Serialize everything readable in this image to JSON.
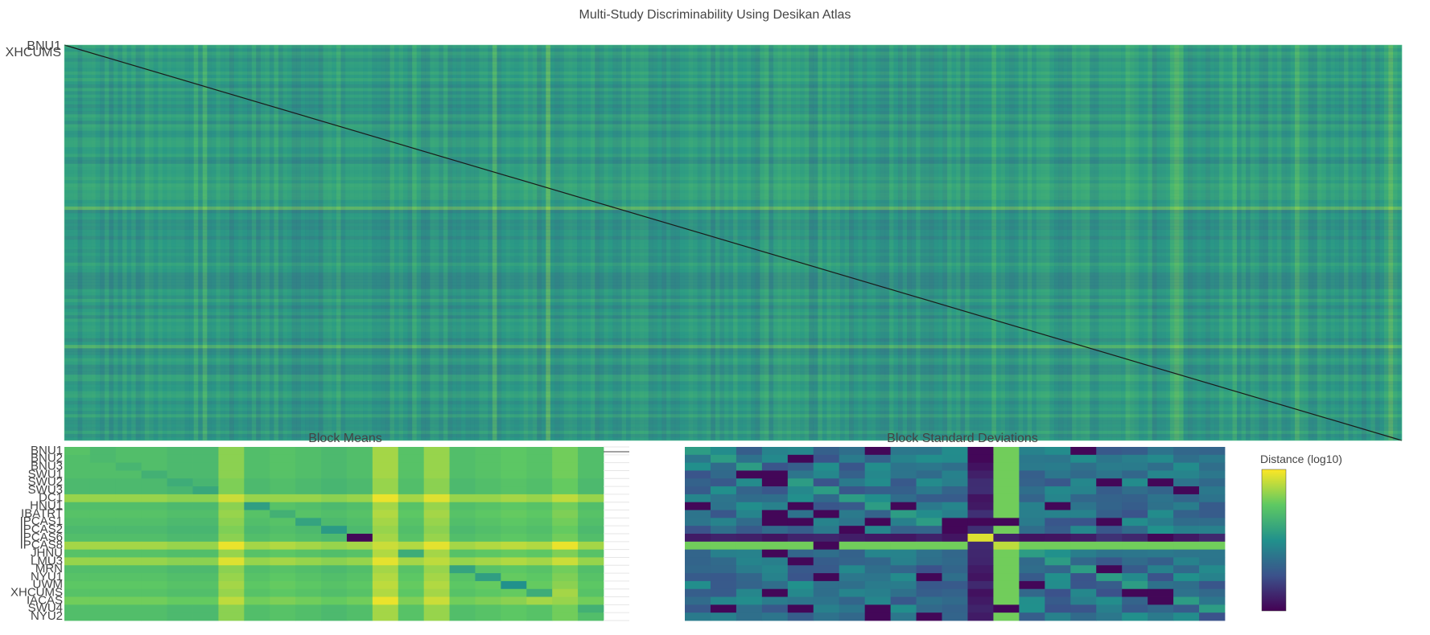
{
  "title": "Multi-Study Discriminability Using Desikan Atlas",
  "colors": {
    "scale": [
      "#440154",
      "#3b528b",
      "#21918c",
      "#5ec962",
      "#fde725"
    ],
    "diagonal": "#1a1a1a"
  },
  "chart_data": [
    {
      "type": "heatmap",
      "name": "distance-matrix",
      "title": "",
      "colorscale": "viridis",
      "diagonal": "minimum distance along main diagonal",
      "row_labels_visible": [
        "BNU1",
        "XHCUMS"
      ]
    },
    {
      "type": "heatmap",
      "name": "block-means",
      "title": "Block Means",
      "colorscale": "viridis",
      "row_labels": [
        "BNU1",
        "BNU2",
        "BNU3",
        "SWU1",
        "SWU2",
        "SWU3",
        "DC1",
        "HNU1",
        "IBATRT",
        "IPCAS1",
        "IPCAS2",
        "IPCAS6",
        "IPCAS8",
        "JHNU",
        "LMU3",
        "MRN",
        "NYU1",
        "UWM",
        "XHCUMS",
        "IACAS",
        "SWU4",
        "NYU2"
      ],
      "column_count": 21,
      "values_estimated": [
        [
          0.72,
          0.68,
          0.7,
          0.7,
          0.68,
          0.68,
          0.82,
          0.7,
          0.72,
          0.7,
          0.68,
          0.7,
          0.86,
          0.72,
          0.84,
          0.7,
          0.72,
          0.74,
          0.72,
          0.78,
          0.7
        ],
        [
          0.7,
          0.68,
          0.7,
          0.7,
          0.68,
          0.68,
          0.82,
          0.7,
          0.72,
          0.7,
          0.68,
          0.7,
          0.86,
          0.72,
          0.84,
          0.7,
          0.72,
          0.74,
          0.72,
          0.78,
          0.7
        ],
        [
          0.7,
          0.7,
          0.66,
          0.7,
          0.68,
          0.68,
          0.82,
          0.7,
          0.72,
          0.7,
          0.68,
          0.7,
          0.86,
          0.72,
          0.84,
          0.7,
          0.72,
          0.74,
          0.72,
          0.78,
          0.7
        ],
        [
          0.7,
          0.7,
          0.7,
          0.64,
          0.68,
          0.68,
          0.82,
          0.7,
          0.72,
          0.7,
          0.68,
          0.7,
          0.86,
          0.72,
          0.84,
          0.7,
          0.72,
          0.74,
          0.72,
          0.78,
          0.7
        ],
        [
          0.68,
          0.68,
          0.68,
          0.68,
          0.62,
          0.66,
          0.8,
          0.68,
          0.7,
          0.68,
          0.66,
          0.68,
          0.84,
          0.7,
          0.82,
          0.68,
          0.7,
          0.72,
          0.7,
          0.76,
          0.68
        ],
        [
          0.68,
          0.68,
          0.68,
          0.68,
          0.66,
          0.6,
          0.8,
          0.68,
          0.7,
          0.68,
          0.66,
          0.68,
          0.84,
          0.7,
          0.82,
          0.68,
          0.7,
          0.72,
          0.7,
          0.76,
          0.68
        ],
        [
          0.84,
          0.84,
          0.84,
          0.84,
          0.82,
          0.82,
          0.92,
          0.84,
          0.84,
          0.84,
          0.82,
          0.84,
          0.97,
          0.86,
          0.95,
          0.84,
          0.84,
          0.86,
          0.84,
          0.9,
          0.84
        ],
        [
          0.7,
          0.7,
          0.7,
          0.7,
          0.68,
          0.68,
          0.82,
          0.56,
          0.72,
          0.7,
          0.68,
          0.7,
          0.86,
          0.72,
          0.84,
          0.7,
          0.72,
          0.74,
          0.72,
          0.78,
          0.7
        ],
        [
          0.72,
          0.72,
          0.72,
          0.72,
          0.7,
          0.7,
          0.84,
          0.72,
          0.64,
          0.72,
          0.7,
          0.72,
          0.88,
          0.74,
          0.86,
          0.72,
          0.74,
          0.76,
          0.74,
          0.8,
          0.72
        ],
        [
          0.7,
          0.7,
          0.7,
          0.7,
          0.68,
          0.68,
          0.82,
          0.7,
          0.72,
          0.58,
          0.68,
          0.7,
          0.86,
          0.72,
          0.84,
          0.7,
          0.72,
          0.74,
          0.72,
          0.78,
          0.7
        ],
        [
          0.68,
          0.68,
          0.68,
          0.68,
          0.66,
          0.66,
          0.8,
          0.68,
          0.7,
          0.68,
          0.54,
          0.68,
          0.84,
          0.7,
          0.82,
          0.68,
          0.7,
          0.72,
          0.7,
          0.76,
          0.68
        ],
        [
          0.7,
          0.7,
          0.7,
          0.7,
          0.68,
          0.68,
          0.82,
          0.7,
          0.72,
          0.7,
          0.68,
          0.02,
          0.86,
          0.72,
          0.84,
          0.7,
          0.72,
          0.74,
          0.72,
          0.78,
          0.7
        ],
        [
          0.86,
          0.86,
          0.86,
          0.86,
          0.84,
          0.84,
          0.97,
          0.86,
          0.88,
          0.86,
          0.84,
          0.86,
          0.92,
          0.88,
          0.96,
          0.86,
          0.88,
          0.9,
          0.88,
          0.97,
          0.86
        ],
        [
          0.72,
          0.72,
          0.72,
          0.72,
          0.7,
          0.7,
          0.84,
          0.72,
          0.74,
          0.72,
          0.7,
          0.72,
          0.88,
          0.62,
          0.86,
          0.72,
          0.74,
          0.76,
          0.74,
          0.8,
          0.72
        ],
        [
          0.84,
          0.84,
          0.84,
          0.84,
          0.82,
          0.82,
          0.95,
          0.84,
          0.86,
          0.84,
          0.82,
          0.84,
          0.96,
          0.86,
          0.9,
          0.84,
          0.86,
          0.88,
          0.86,
          0.92,
          0.84
        ],
        [
          0.7,
          0.7,
          0.7,
          0.7,
          0.68,
          0.68,
          0.82,
          0.7,
          0.72,
          0.7,
          0.68,
          0.7,
          0.86,
          0.72,
          0.84,
          0.58,
          0.72,
          0.74,
          0.72,
          0.78,
          0.7
        ],
        [
          0.72,
          0.72,
          0.72,
          0.72,
          0.7,
          0.7,
          0.84,
          0.72,
          0.74,
          0.72,
          0.7,
          0.72,
          0.88,
          0.74,
          0.86,
          0.72,
          0.56,
          0.76,
          0.74,
          0.8,
          0.72
        ],
        [
          0.74,
          0.74,
          0.74,
          0.74,
          0.72,
          0.72,
          0.86,
          0.74,
          0.76,
          0.74,
          0.72,
          0.74,
          0.9,
          0.76,
          0.88,
          0.74,
          0.76,
          0.5,
          0.76,
          0.82,
          0.74
        ],
        [
          0.72,
          0.72,
          0.72,
          0.72,
          0.7,
          0.7,
          0.84,
          0.72,
          0.74,
          0.72,
          0.7,
          0.72,
          0.88,
          0.74,
          0.86,
          0.72,
          0.74,
          0.76,
          0.62,
          0.86,
          0.72
        ],
        [
          0.78,
          0.78,
          0.78,
          0.78,
          0.76,
          0.76,
          0.9,
          0.78,
          0.8,
          0.78,
          0.76,
          0.78,
          0.97,
          0.8,
          0.92,
          0.78,
          0.8,
          0.82,
          0.86,
          0.84,
          0.78
        ],
        [
          0.7,
          0.7,
          0.7,
          0.7,
          0.68,
          0.68,
          0.82,
          0.7,
          0.72,
          0.7,
          0.68,
          0.7,
          0.86,
          0.72,
          0.84,
          0.7,
          0.72,
          0.74,
          0.72,
          0.78,
          0.64
        ],
        [
          0.7,
          0.7,
          0.7,
          0.7,
          0.68,
          0.68,
          0.82,
          0.7,
          0.72,
          0.7,
          0.68,
          0.7,
          0.86,
          0.72,
          0.84,
          0.7,
          0.72,
          0.74,
          0.72,
          0.78,
          0.7
        ]
      ]
    },
    {
      "type": "heatmap",
      "name": "block-standard-deviations",
      "title": "Block Standard Deviations",
      "colorscale": "viridis",
      "column_count": 21,
      "row_count": 22
    }
  ],
  "colorbar": {
    "title": "Distance (log10)"
  }
}
